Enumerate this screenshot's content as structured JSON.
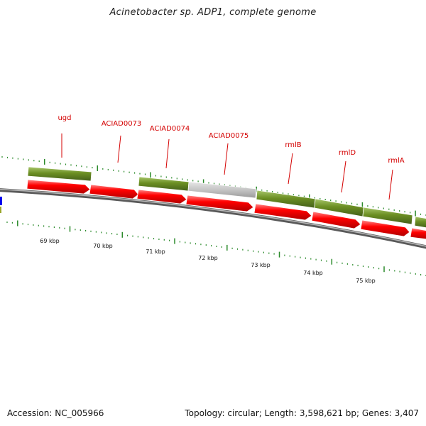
{
  "title": "Acinetobacter sp. ADP1, complete genome",
  "footer": {
    "accession": "Accession: NC_005966",
    "summary": "Topology: circular; Length: 3,598,621 bp; Genes: 3,407"
  },
  "colors": {
    "cds": "#ff0000",
    "gene": "#6b8e23",
    "pseudo_gene": "#c0c0c0",
    "gene_label": "#d40000",
    "tick": "#2a8a2a",
    "backbone": "#8c8c8c"
  },
  "gene_labels": [
    "ugd",
    "ACIAD0073",
    "ACIAD0074",
    "ACIAD0075",
    "rmlB",
    "rmlD",
    "rmlA"
  ],
  "scale_labels": [
    "69 kbp",
    "70 kbp",
    "71 kbp",
    "72 kbp",
    "73 kbp",
    "74 kbp",
    "75 kbp"
  ]
}
